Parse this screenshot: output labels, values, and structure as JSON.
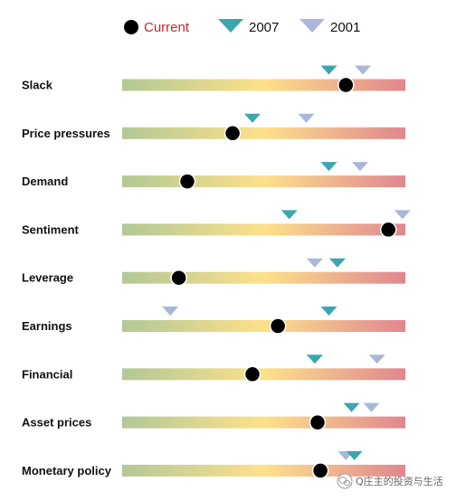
{
  "chart_data": {
    "type": "range-indicator",
    "scale": [
      0,
      1
    ],
    "legend": [
      {
        "key": "current",
        "label": "Current",
        "marker": "dot",
        "color": "#000000",
        "text_color": "#c8282e"
      },
      {
        "key": "y2007",
        "label": "2007",
        "marker": "triangle-down",
        "color": "#3aa6b0",
        "text_color": "#111111"
      },
      {
        "key": "y2001",
        "label": "2001",
        "marker": "triangle-down",
        "color": "#a9b8d9",
        "text_color": "#111111"
      }
    ],
    "gradient_colors": [
      "#b2c896",
      "#fde18a",
      "#e08690"
    ],
    "rows": [
      {
        "label": "Slack",
        "current": 0.79,
        "y2007": 0.73,
        "y2001": 0.85
      },
      {
        "label": "Price pressures",
        "current": 0.39,
        "y2007": 0.46,
        "y2001": 0.65
      },
      {
        "label": "Demand",
        "current": 0.23,
        "y2007": 0.73,
        "y2001": 0.84
      },
      {
        "label": "Sentiment",
        "current": 0.94,
        "y2007": 0.59,
        "y2001": 0.99
      },
      {
        "label": "Leverage",
        "current": 0.2,
        "y2007": 0.76,
        "y2001": 0.68
      },
      {
        "label": "Earnings",
        "current": 0.55,
        "y2007": 0.73,
        "y2001": 0.17
      },
      {
        "label": "Financial",
        "current": 0.46,
        "y2007": 0.68,
        "y2001": 0.9
      },
      {
        "label": "Asset prices",
        "current": 0.69,
        "y2007": 0.81,
        "y2001": 0.88
      },
      {
        "label": "Monetary policy",
        "current": 0.7,
        "y2007": 0.82,
        "y2001": 0.79
      }
    ]
  },
  "watermark": {
    "icon": "wechat-logo-icon",
    "text": "Q庄主的投资与生活"
  }
}
